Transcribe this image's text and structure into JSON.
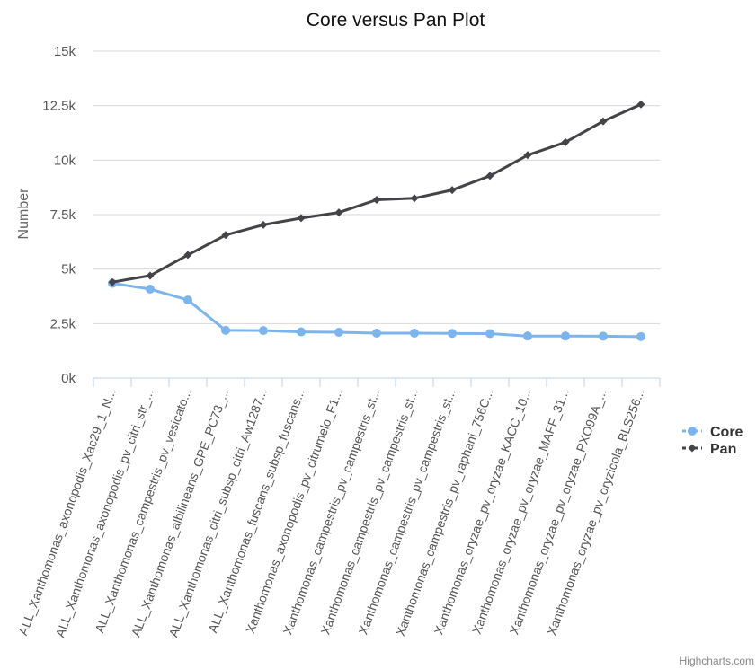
{
  "chart_data": {
    "type": "line",
    "title": "Core versus Pan Plot",
    "ylabel": "Number",
    "xlabel": "",
    "ylim": [
      0,
      15000
    ],
    "yticks": [
      0,
      2500,
      5000,
      7500,
      10000,
      12500,
      15000
    ],
    "ytick_labels": [
      "0k",
      "2.5k",
      "5k",
      "7.5k",
      "10k",
      "12.5k",
      "15k"
    ],
    "categories": [
      "ALL_Xanthomonas_axonopodis_Xac29_1_N...",
      "ALL_Xanthomonas_axonopodis_pv_citri_str_...",
      "ALL_Xanthomonas_campestris_pv_vesicato...",
      "ALL_Xanthomonas_albilineans_GPE_PC73_...",
      "ALL_Xanthomonas_citri_subsp_citri_Aw1287...",
      "ALL_Xanthomonas_fuscans_subsp_fuscans...",
      "Xanthomonas_axonopodis_pv_citrumelo_F1...",
      "Xanthomonas_campestris_pv_campestris_st...",
      "Xanthomonas_campestris_pv_campestris_st...",
      "Xanthomonas_campestris_pv_campestris_st...",
      "Xanthomonas_campestris_pv_raphani_756C...",
      "Xanthomonas_oryzae_pv_oryzae_KACC_10...",
      "Xanthomonas_oryzae_pv_oryzae_MAFF_31...",
      "Xanthomonas_oryzae_pv_oryzae_PXO99A_...",
      "Xanthomonas_oryzae_pv_oryzicola_BLS256..."
    ],
    "series": [
      {
        "name": "Core",
        "color": "#7cb5ec",
        "marker": "circle",
        "values": [
          4350,
          4080,
          3580,
          2190,
          2180,
          2120,
          2100,
          2060,
          2060,
          2050,
          2040,
          1930,
          1930,
          1920,
          1900
        ]
      },
      {
        "name": "Pan",
        "color": "#434348",
        "marker": "diamond",
        "values": [
          4400,
          4700,
          5650,
          6560,
          7030,
          7340,
          7600,
          8180,
          8250,
          8630,
          9280,
          10230,
          10820,
          11780,
          12560
        ]
      }
    ],
    "legend_position": "right",
    "grid": true,
    "credits": "Highcharts.com"
  }
}
